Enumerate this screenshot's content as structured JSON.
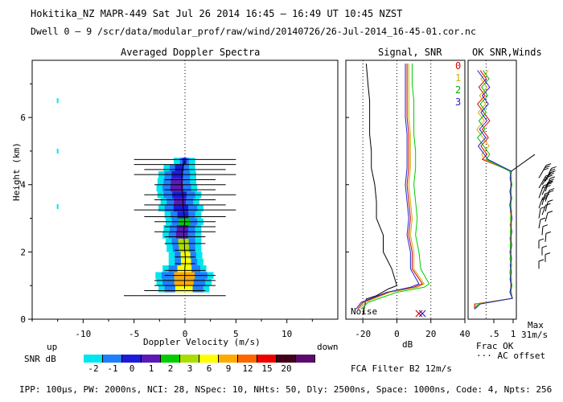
{
  "header": {
    "line1": "Hokitika_NZ  MAPR-449  Sat Jul 26 2014 16:45 – 16:49 UT 10:45 NZST",
    "line2": "Dwell  0 –  9   /scr/data/modular_prof/raw/wind/20140726/26-Jul-2014_16-45-01.cor.nc"
  },
  "footer": {
    "params": "IPP: 100µs,  PW: 2000ns,  NCI: 28,  NSpec: 10, NHts: 50,  Dly: 2500ns,  Space: 1000ns,  Code: 4,  Npts: 256",
    "fca": "FCA Filter B2 12m/s"
  },
  "colorbar": {
    "title": "SNR dB",
    "ticks": [
      "-2",
      "-1",
      "0",
      "1",
      "2",
      "3",
      "6",
      "9",
      "12",
      "15",
      "20"
    ],
    "colors": [
      "#00e5ee",
      "#1e7fff",
      "#1c1cd8",
      "#5a1ab8",
      "#00cc00",
      "#aadd00",
      "#ffff00",
      "#ffaa00",
      "#ff6600",
      "#ee0000",
      "#400018",
      "#5c0a6e"
    ]
  },
  "chart_data": [
    {
      "type": "heatmap",
      "title": "Averaged Doppler Spectra",
      "xlabel": "Doppler Velocity (m/s)",
      "ylabel": "Height (km)",
      "xlim": [
        -15,
        15
      ],
      "ylim": [
        0,
        7.7
      ],
      "xticks": [
        "-10",
        "-5",
        "0",
        "5",
        "10"
      ],
      "yticks": [
        "0",
        "2",
        "4",
        "6"
      ],
      "x_left_label": "up",
      "x_right_label": "down",
      "spectra": [
        {
          "h": 0.9,
          "vmin": -2.0,
          "vmax": 1.8,
          "snr": 4
        },
        {
          "h": 1.1,
          "vmin": -2.2,
          "vmax": 2.0,
          "snr": 5
        },
        {
          "h": 1.3,
          "vmin": -2.3,
          "vmax": 2.2,
          "snr": 5
        },
        {
          "h": 1.5,
          "vmin": -1.6,
          "vmax": 1.5,
          "snr": 4
        },
        {
          "h": 1.7,
          "vmin": -1.0,
          "vmax": 1.2,
          "snr": 4
        },
        {
          "h": 1.9,
          "vmin": -1.0,
          "vmax": 1.1,
          "snr": 4
        },
        {
          "h": 2.1,
          "vmin": -1.2,
          "vmax": 1.0,
          "snr": 3
        },
        {
          "h": 2.3,
          "vmin": -1.3,
          "vmax": 1.0,
          "snr": 3
        },
        {
          "h": 2.5,
          "vmin": -1.6,
          "vmax": 1.0,
          "snr": 1
        },
        {
          "h": 2.7,
          "vmin": -1.5,
          "vmax": 1.0,
          "snr": 1
        },
        {
          "h": 2.9,
          "vmin": -1.3,
          "vmax": 1.2,
          "snr": 2
        },
        {
          "h": 3.1,
          "vmin": -1.4,
          "vmax": 1.0,
          "snr": 0
        },
        {
          "h": 3.3,
          "vmin": -2.0,
          "vmax": 1.2,
          "snr": 0
        },
        {
          "h": 3.5,
          "vmin": -1.8,
          "vmax": 0.8,
          "snr": 1
        },
        {
          "h": 3.7,
          "vmin": -2.1,
          "vmax": 1.0,
          "snr": 0
        },
        {
          "h": 3.9,
          "vmin": -2.2,
          "vmax": 0.6,
          "snr": 1
        },
        {
          "h": 4.1,
          "vmin": -2.1,
          "vmax": 0.5,
          "snr": 1
        },
        {
          "h": 4.3,
          "vmin": -2.0,
          "vmax": 0.5,
          "snr": 0
        },
        {
          "h": 4.5,
          "vmin": -1.5,
          "vmax": 0.4,
          "snr": 0
        },
        {
          "h": 4.7,
          "vmin": -0.5,
          "vmax": 0.4,
          "snr": 0
        }
      ],
      "bars": [
        {
          "h": 0.7,
          "x0": -6,
          "x1": 4
        },
        {
          "h": 0.85,
          "x0": -4,
          "x1": 2
        },
        {
          "h": 1.0,
          "x0": -3,
          "x1": 3
        },
        {
          "h": 1.15,
          "x0": -3,
          "x1": 3
        },
        {
          "h": 1.3,
          "x0": -2,
          "x1": 3
        },
        {
          "h": 1.45,
          "x0": -2,
          "x1": 2
        },
        {
          "h": 1.65,
          "x0": -1,
          "x1": 1
        },
        {
          "h": 1.85,
          "x0": -1,
          "x1": 1
        },
        {
          "h": 2.05,
          "x0": -1,
          "x1": 1
        },
        {
          "h": 2.25,
          "x0": -2,
          "x1": 2
        },
        {
          "h": 2.45,
          "x0": -2,
          "x1": 2
        },
        {
          "h": 2.6,
          "x0": -3,
          "x1": 3
        },
        {
          "h": 2.75,
          "x0": -2,
          "x1": 3
        },
        {
          "h": 2.9,
          "x0": -3,
          "x1": 3
        },
        {
          "h": 3.05,
          "x0": -4,
          "x1": 4
        },
        {
          "h": 3.25,
          "x0": -5,
          "x1": 5
        },
        {
          "h": 3.4,
          "x0": -4,
          "x1": 4
        },
        {
          "h": 3.55,
          "x0": -3,
          "x1": 3
        },
        {
          "h": 3.7,
          "x0": -4,
          "x1": 5
        },
        {
          "h": 3.85,
          "x0": -2,
          "x1": 3
        },
        {
          "h": 4.0,
          "x0": -3,
          "x1": 4
        },
        {
          "h": 4.15,
          "x0": -2,
          "x1": 3
        },
        {
          "h": 4.3,
          "x0": -5,
          "x1": 5
        },
        {
          "h": 4.45,
          "x0": -4,
          "x1": 4
        },
        {
          "h": 4.6,
          "x0": -5,
          "x1": 5
        },
        {
          "h": 4.75,
          "x0": -5,
          "x1": 5
        }
      ],
      "isolated_points": [
        {
          "v": -12.5,
          "h": 6.5
        },
        {
          "v": -12.5,
          "h": 5.0
        },
        {
          "v": -12.5,
          "h": 3.35
        }
      ]
    },
    {
      "type": "line",
      "title": "Signal, SNR",
      "xlabel": "dB",
      "xlim": [
        -30,
        40
      ],
      "ylim": [
        0,
        7.7
      ],
      "xticks": [
        "-20",
        "0",
        "20",
        "40"
      ],
      "noise_label": "Noise",
      "noise_markers": [
        {
          "name": "red",
          "x": 13
        },
        {
          "name": "blue",
          "x": 15
        }
      ],
      "series": [
        {
          "name": "signal",
          "color": "#000000",
          "points": [
            [
              -20,
              0.15
            ],
            [
              -18,
              0.6
            ],
            [
              -12,
              0.7
            ],
            [
              -5,
              0.9
            ],
            [
              0,
              1.0
            ],
            [
              -3,
              1.5
            ],
            [
              -8,
              2.0
            ],
            [
              -8,
              2.5
            ],
            [
              -12,
              3.0
            ],
            [
              -12,
              3.5
            ],
            [
              -13,
              4.0
            ],
            [
              -15,
              4.5
            ],
            [
              -15,
              5
            ],
            [
              -16,
              5.5
            ],
            [
              -16,
              6
            ],
            [
              -16,
              6.5
            ],
            [
              -17,
              7.0
            ],
            [
              -18,
              7.6
            ]
          ]
        },
        {
          "name": "snr-0",
          "color": "#cc0000",
          "points": [
            [
              -23,
              0.3
            ],
            [
              -20,
              0.5
            ],
            [
              -5,
              0.8
            ],
            [
              10,
              0.95
            ],
            [
              15,
              1.05
            ],
            [
              9,
              1.5
            ],
            [
              9,
              2.0
            ],
            [
              7,
              2.5
            ],
            [
              8,
              3.0
            ],
            [
              7,
              3.5
            ],
            [
              6,
              4.0
            ],
            [
              7,
              4.5
            ],
            [
              7,
              5
            ],
            [
              7,
              5.5
            ],
            [
              6,
              6
            ],
            [
              6,
              6.5
            ],
            [
              6,
              7.0
            ],
            [
              6,
              7.6
            ]
          ]
        },
        {
          "name": "snr-1",
          "color": "#ccaa00",
          "points": [
            [
              -22,
              0.3
            ],
            [
              -19,
              0.5
            ],
            [
              -4,
              0.8
            ],
            [
              12,
              0.95
            ],
            [
              16,
              1.05
            ],
            [
              10,
              1.5
            ],
            [
              10,
              2.0
            ],
            [
              8,
              2.5
            ],
            [
              9,
              3.0
            ],
            [
              8,
              3.5
            ],
            [
              7,
              4.0
            ],
            [
              8,
              4.5
            ],
            [
              8,
              5
            ],
            [
              8,
              5.5
            ],
            [
              7,
              6
            ],
            [
              7,
              6.5
            ],
            [
              7,
              7.0
            ],
            [
              7,
              7.6
            ]
          ]
        },
        {
          "name": "snr-2",
          "color": "#00cc00",
          "points": [
            [
              -21,
              0.3
            ],
            [
              -17,
              0.5
            ],
            [
              0,
              0.8
            ],
            [
              16,
              0.95
            ],
            [
              19,
              1.05
            ],
            [
              14,
              1.5
            ],
            [
              13,
              2.0
            ],
            [
              11,
              2.5
            ],
            [
              12,
              3.0
            ],
            [
              11,
              3.5
            ],
            [
              10,
              4.0
            ],
            [
              11,
              4.5
            ],
            [
              11,
              5
            ],
            [
              10,
              5.5
            ],
            [
              10,
              6
            ],
            [
              10,
              6.5
            ],
            [
              9,
              7.0
            ],
            [
              9,
              7.6
            ]
          ]
        },
        {
          "name": "snr-3",
          "color": "#2222cc",
          "points": [
            [
              -24,
              0.3
            ],
            [
              -21,
              0.5
            ],
            [
              -6,
              0.8
            ],
            [
              8,
              0.95
            ],
            [
              13,
              1.05
            ],
            [
              8,
              1.5
            ],
            [
              8,
              2.0
            ],
            [
              6,
              2.5
            ],
            [
              7,
              3.0
            ],
            [
              6,
              3.5
            ],
            [
              5,
              4.0
            ],
            [
              6,
              4.5
            ],
            [
              6,
              5
            ],
            [
              6,
              5.5
            ],
            [
              5,
              6
            ],
            [
              5,
              6.5
            ],
            [
              5,
              7.0
            ],
            [
              5,
              7.6
            ]
          ]
        }
      ]
    },
    {
      "type": "line",
      "title": "OK SNR,Winds",
      "xlabel": "Frac OK",
      "xlim": [
        0,
        1
      ],
      "ylim": [
        0,
        7.7
      ],
      "xticks": [
        ".5",
        "1"
      ],
      "legend": [
        {
          "label": "0",
          "color": "#dd0000"
        },
        {
          "label": "1",
          "color": "#ddaa00"
        },
        {
          "label": "2",
          "color": "#00bb00"
        },
        {
          "label": "3",
          "color": "#2222cc"
        }
      ],
      "notes": [
        "Max",
        "31m/s",
        "Frac OK",
        "··· AC offset"
      ],
      "wind_barbs": [
        {
          "h": 4.2,
          "speed": 29,
          "dir": 210
        },
        {
          "h": 4.1,
          "speed": 28,
          "dir": 205
        },
        {
          "h": 4.0,
          "speed": 30,
          "dir": 215
        },
        {
          "h": 3.9,
          "speed": 27,
          "dir": 210
        },
        {
          "h": 3.8,
          "speed": 26,
          "dir": 200
        },
        {
          "h": 3.7,
          "speed": 25,
          "dir": 205
        },
        {
          "h": 3.6,
          "speed": 24,
          "dir": 200
        },
        {
          "h": 3.5,
          "speed": 20,
          "dir": 200
        },
        {
          "h": 3.4,
          "speed": 18,
          "dir": 195
        },
        {
          "h": 3.3,
          "speed": 16,
          "dir": 200
        },
        {
          "h": 3.2,
          "speed": 14,
          "dir": 195
        },
        {
          "h": 3.1,
          "speed": 14,
          "dir": 200
        },
        {
          "h": 3.0,
          "speed": 13,
          "dir": 190
        },
        {
          "h": 2.9,
          "speed": 10,
          "dir": 195
        },
        {
          "h": 2.7,
          "speed": 9,
          "dir": 190
        },
        {
          "h": 2.5,
          "speed": 8,
          "dir": 185
        },
        {
          "h": 2.3,
          "speed": 7,
          "dir": 185
        },
        {
          "h": 2.1,
          "speed": 6,
          "dir": 180
        },
        {
          "h": 1.9,
          "speed": 5,
          "dir": 180
        },
        {
          "h": 1.7,
          "speed": 4,
          "dir": 180
        },
        {
          "h": 1.5,
          "speed": 4,
          "dir": 180
        }
      ]
    }
  ]
}
